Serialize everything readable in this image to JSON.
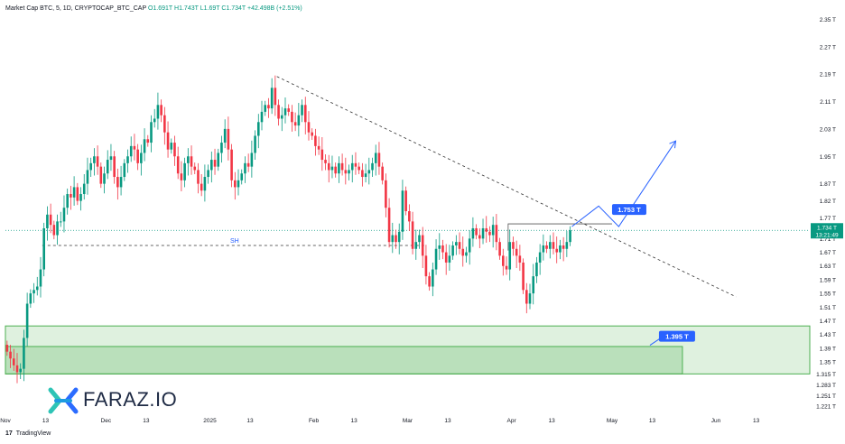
{
  "header": {
    "symbol": "Market Cap BTC, 5, 1D, CRYPTOCAP_BTC_CAP",
    "open": "O1.691T",
    "high": "H1.743T",
    "low": "L1.69T",
    "close": "C1.734T",
    "change": "+42.498B (+2.51%)"
  },
  "branding": {
    "logo_text": "FARAZ.IO",
    "platform": "TradingView",
    "platform_mark": "17"
  },
  "colors": {
    "up": "#089981",
    "down": "#f23645",
    "zone": "#4caf50",
    "arrow": "#2962ff",
    "price_tag": "#089981"
  },
  "chart_data": {
    "type": "candlestick",
    "y_axis": {
      "range": [
        1.2,
        2.38
      ],
      "tick_labels": [
        "2.35 T",
        "2.27 T",
        "2.19 T",
        "2.11 T",
        "2.03 T",
        "1.95 T",
        "1.87 T",
        "1.82 T",
        "1.77 T",
        "1.71 T",
        "1.67 T",
        "1.63 T",
        "1.59 T",
        "1.55 T",
        "1.51 T",
        "1.47 T",
        "1.43 T",
        "1.39 T",
        "1.35 T",
        "1.315 T",
        "1.283 T",
        "1.251 T",
        "1.221 T"
      ],
      "tick_values": [
        2.35,
        2.27,
        2.19,
        2.11,
        2.03,
        1.95,
        1.87,
        1.82,
        1.77,
        1.71,
        1.67,
        1.63,
        1.59,
        1.55,
        1.51,
        1.47,
        1.43,
        1.39,
        1.35,
        1.315,
        1.283,
        1.251,
        1.221
      ]
    },
    "x_axis": {
      "range": [
        "2024-11-01",
        "2025-06-29"
      ],
      "ticks": [
        {
          "label": "Nov",
          "date": "2024-11-01"
        },
        {
          "label": "13",
          "date": "2024-11-13"
        },
        {
          "label": "Dec",
          "date": "2024-12-01"
        },
        {
          "label": "13",
          "date": "2024-12-13"
        },
        {
          "label": "2025",
          "date": "2025-01-01"
        },
        {
          "label": "13",
          "date": "2025-01-13"
        },
        {
          "label": "Feb",
          "date": "2025-02-01"
        },
        {
          "label": "13",
          "date": "2025-02-13"
        },
        {
          "label": "Mar",
          "date": "2025-03-01"
        },
        {
          "label": "13",
          "date": "2025-03-13"
        },
        {
          "label": "Apr",
          "date": "2025-04-01"
        },
        {
          "label": "13",
          "date": "2025-04-13"
        },
        {
          "label": "May",
          "date": "2025-05-01"
        },
        {
          "label": "13",
          "date": "2025-05-13"
        },
        {
          "label": "Jun",
          "date": "2025-06-01"
        },
        {
          "label": "13",
          "date": "2025-06-13"
        }
      ]
    },
    "series_close": [
      1.38,
      1.36,
      1.34,
      1.32,
      1.33,
      1.42,
      1.52,
      1.55,
      1.56,
      1.57,
      1.62,
      1.74,
      1.78,
      1.75,
      1.72,
      1.76,
      1.76,
      1.8,
      1.84,
      1.83,
      1.86,
      1.82,
      1.84,
      1.87,
      1.91,
      1.93,
      1.95,
      1.92,
      1.87,
      1.9,
      1.94,
      1.95,
      1.89,
      1.86,
      1.89,
      1.93,
      1.95,
      1.98,
      1.97,
      1.93,
      1.96,
      2.0,
      1.99,
      2.05,
      2.06,
      2.1,
      2.07,
      2.02,
      1.97,
      1.99,
      1.95,
      1.9,
      1.88,
      1.93,
      1.95,
      1.92,
      1.91,
      1.87,
      1.85,
      1.89,
      1.91,
      1.94,
      1.92,
      1.96,
      1.99,
      2.03,
      1.97,
      1.88,
      1.86,
      1.88,
      1.9,
      1.93,
      1.92,
      1.96,
      2.01,
      2.05,
      2.08,
      2.1,
      2.09,
      2.15,
      2.1,
      2.06,
      2.07,
      2.09,
      2.08,
      2.05,
      2.04,
      2.07,
      2.1,
      2.05,
      2.02,
      2.01,
      1.98,
      1.97,
      1.94,
      1.93,
      1.91,
      1.92,
      1.9,
      1.93,
      1.91,
      1.9,
      1.91,
      1.93,
      1.92,
      1.91,
      1.89,
      1.9,
      1.91,
      1.93,
      1.96,
      1.92,
      1.88,
      1.8,
      1.7,
      1.72,
      1.7,
      1.73,
      1.85,
      1.79,
      1.76,
      1.68,
      1.7,
      1.72,
      1.66,
      1.6,
      1.57,
      1.62,
      1.68,
      1.69,
      1.67,
      1.64,
      1.66,
      1.69,
      1.7,
      1.68,
      1.66,
      1.67,
      1.71,
      1.74,
      1.72,
      1.71,
      1.74,
      1.73,
      1.72,
      1.75,
      1.7,
      1.66,
      1.63,
      1.62,
      1.7,
      1.68,
      1.66,
      1.64,
      1.56,
      1.52,
      1.55,
      1.6,
      1.64,
      1.67,
      1.69,
      1.68,
      1.7,
      1.68,
      1.67,
      1.69,
      1.68,
      1.7,
      1.734
    ],
    "last_price": {
      "label": "1.734 T",
      "countdown": "13:21:49",
      "value": 1.734
    },
    "annotations": {
      "sh_label": "SH",
      "sh_level": 1.69,
      "target_label": "1.753 T",
      "support_label": "1.395 T",
      "support_zone": [
        1.315,
        1.455
      ],
      "inner_zone": [
        1.315,
        1.395
      ],
      "trendline": {
        "start": [
          "2025-01-21",
          2.183
        ],
        "end": [
          "2025-06-07",
          1.54
        ]
      },
      "resistance_level": 1.753
    }
  }
}
